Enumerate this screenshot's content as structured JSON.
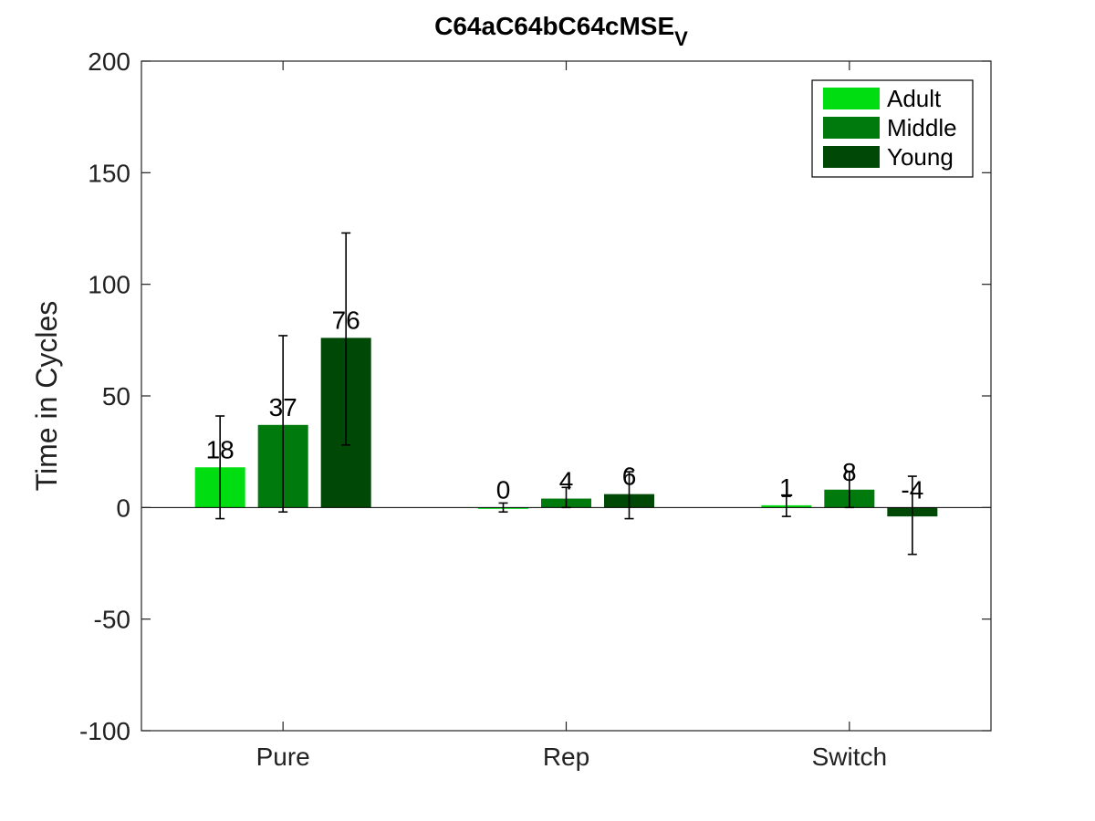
{
  "chart_data": {
    "type": "bar",
    "title": "C64aC64bC64cMSE",
    "title_subscript": "V",
    "ylabel": "Time in Cycles",
    "xlabel": "",
    "categories": [
      "Pure",
      "Rep",
      "Switch"
    ],
    "ylim": [
      -100,
      200
    ],
    "yticks": [
      -100,
      -50,
      0,
      50,
      100,
      150,
      200
    ],
    "grid": false,
    "legend_position": "top-right",
    "series": [
      {
        "name": "Adult",
        "color": "#00dd11",
        "values": [
          18,
          0,
          1
        ],
        "err_low": [
          -5,
          -2,
          -4
        ],
        "err_high": [
          41,
          2,
          5
        ],
        "labels": [
          "18",
          "0",
          "1"
        ]
      },
      {
        "name": "Middle",
        "color": "#007a0c",
        "values": [
          37,
          4,
          8
        ],
        "err_low": [
          -2,
          0,
          0
        ],
        "err_high": [
          77,
          9,
          16
        ],
        "labels": [
          "37",
          "4",
          "8"
        ]
      },
      {
        "name": "Young",
        "color": "#004805",
        "values": [
          76,
          6,
          -4
        ],
        "err_low": [
          28,
          -5,
          -21
        ],
        "err_high": [
          123,
          16,
          14
        ],
        "labels": [
          "76",
          "6",
          "-4"
        ]
      }
    ]
  }
}
